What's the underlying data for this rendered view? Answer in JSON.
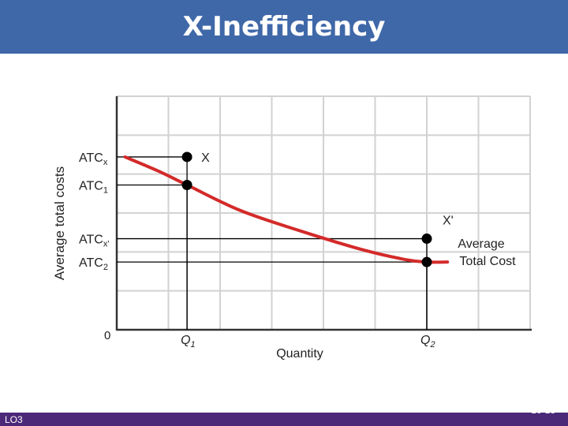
{
  "slide": {
    "title": "X-Inefficiency",
    "footer_left": "LO3",
    "footer_right": "10-13"
  },
  "colors": {
    "title_bar": "#3f68a8",
    "footer_bar": "#4b2878",
    "curve": "#d42a2a",
    "grid": "#d2d2d2"
  },
  "chart_data": {
    "type": "line",
    "title": "",
    "xlabel": "Quantity",
    "ylabel": "Average total costs",
    "grid": true,
    "origin_label": "0",
    "xlim": [
      0,
      10
    ],
    "ylim": [
      0,
      10
    ],
    "x_ticks": [
      {
        "label": "Q",
        "sub": "1",
        "x": 1.7
      },
      {
        "label": "Q",
        "sub": "2",
        "x": 7.5
      }
    ],
    "y_ticks": [
      {
        "label": "ATC",
        "sub": "x",
        "y": 7.4
      },
      {
        "label": "ATC",
        "sub": "1",
        "y": 6.2
      },
      {
        "label": "ATC",
        "sub": "x'",
        "y": 3.9
      },
      {
        "label": "ATC",
        "sub": "2",
        "y": 2.9
      }
    ],
    "series": [
      {
        "name": "Average Total Cost",
        "x": [
          0.2,
          1.0,
          1.7,
          3.0,
          4.5,
          6.0,
          7.0,
          7.5,
          8.0
        ],
        "y": [
          7.4,
          6.8,
          6.2,
          5.1,
          4.2,
          3.4,
          3.0,
          2.9,
          2.9
        ]
      }
    ],
    "points": [
      {
        "label": "X",
        "x": 1.7,
        "y": 7.4
      },
      {
        "label": "",
        "x": 1.7,
        "y": 6.2
      },
      {
        "label": "X'",
        "x": 7.5,
        "y": 3.9
      },
      {
        "label": "",
        "x": 7.5,
        "y": 2.9
      }
    ],
    "curve_label": [
      "Average",
      "Total Cost"
    ]
  }
}
